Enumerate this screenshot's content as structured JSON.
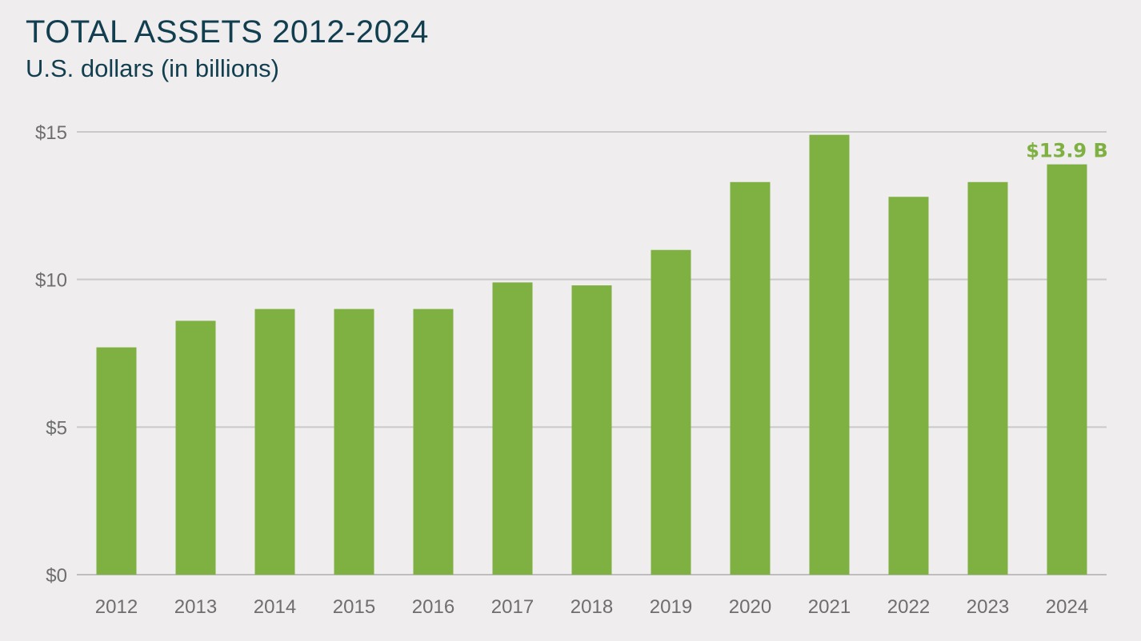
{
  "chart_data": {
    "type": "bar",
    "title": "TOTAL ASSETS 2012-2024",
    "subtitle": "U.S. dollars (in billions)",
    "categories": [
      "2012",
      "2013",
      "2014",
      "2015",
      "2016",
      "2017",
      "2018",
      "2019",
      "2020",
      "2021",
      "2022",
      "2023",
      "2024"
    ],
    "values": [
      7.7,
      8.6,
      9.0,
      9.0,
      9.0,
      9.9,
      9.8,
      11.0,
      13.3,
      14.9,
      12.8,
      13.3,
      13.9
    ],
    "ylim": [
      0,
      15
    ],
    "yticks": [
      {
        "value": 0,
        "label": "$0"
      },
      {
        "value": 5,
        "label": "$5"
      },
      {
        "value": 10,
        "label": "$10"
      },
      {
        "value": 15,
        "label": "$15"
      }
    ],
    "grid": true,
    "bar_color": "#7fb042",
    "data_labels": [
      {
        "category": "2024",
        "text": "$13.9 B"
      }
    ]
  }
}
